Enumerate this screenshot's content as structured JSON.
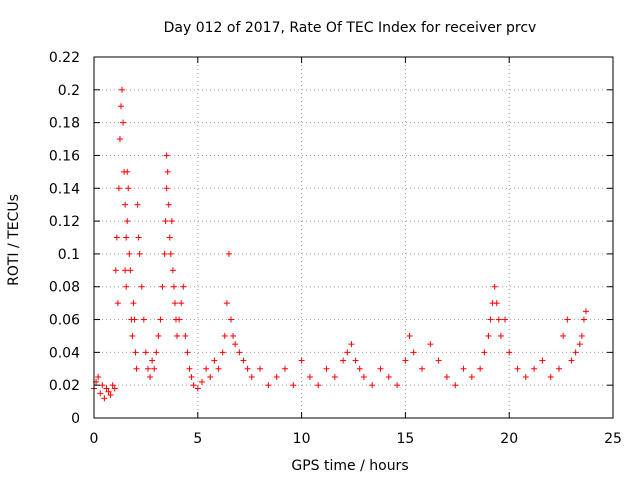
{
  "chart_data": {
    "type": "scatter",
    "title": "Day 012 of 2017, Rate Of TEC Index for receiver prcv",
    "xlabel": "GPS time / hours",
    "ylabel": "ROTI / TECUs",
    "xlim": [
      0,
      25
    ],
    "ylim": [
      0,
      0.22
    ],
    "x_ticks": [
      "0",
      "5",
      "10",
      "15",
      "20",
      "25"
    ],
    "y_ticks": [
      "0",
      "0.02",
      "0.04",
      "0.06",
      "0.08",
      "0.1",
      "0.12",
      "0.14",
      "0.16",
      "0.18",
      "0.2",
      "0.22"
    ],
    "grid": true,
    "marker": "plus",
    "color": "#ff0000",
    "series": [
      {
        "x": [
          0.0,
          0.1,
          0.2,
          0.3,
          0.4,
          0.5,
          0.6,
          0.7,
          0.8,
          0.9,
          1.0,
          1.05,
          1.1,
          1.15,
          1.2,
          1.25,
          1.3,
          1.35,
          1.4,
          1.45,
          1.5,
          1.5,
          1.55,
          1.55,
          1.6,
          1.6,
          1.65,
          1.7,
          1.75,
          1.8,
          1.85,
          1.9,
          1.95,
          2.0,
          2.05,
          2.1,
          2.15,
          2.2,
          2.3,
          2.4,
          2.5,
          2.6,
          2.7,
          2.8,
          2.9,
          3.0,
          3.1,
          3.2,
          3.3,
          3.4,
          3.45,
          3.5,
          3.5,
          3.55,
          3.6,
          3.65,
          3.7,
          3.75,
          3.8,
          3.85,
          3.9,
          3.95,
          4.0,
          4.1,
          4.2,
          4.3,
          4.4,
          4.5,
          4.6,
          4.7,
          4.8,
          5.0,
          5.2,
          5.4,
          5.6,
          5.8,
          6.0,
          6.2,
          6.3,
          6.4,
          6.5,
          6.6,
          6.7,
          6.8,
          7.0,
          7.2,
          7.4,
          7.6,
          8.0,
          8.4,
          8.8,
          9.2,
          9.6,
          10.0,
          10.4,
          10.8,
          11.2,
          11.6,
          12.0,
          12.2,
          12.4,
          12.6,
          12.8,
          13.0,
          13.4,
          13.8,
          14.2,
          14.6,
          15.0,
          15.2,
          15.4,
          15.8,
          16.2,
          16.6,
          17.0,
          17.4,
          17.8,
          18.2,
          18.6,
          18.8,
          19.0,
          19.1,
          19.2,
          19.3,
          19.4,
          19.5,
          19.6,
          19.8,
          20.0,
          20.4,
          20.8,
          21.2,
          21.6,
          22.0,
          22.4,
          22.6,
          22.8,
          23.0,
          23.2,
          23.4,
          23.5,
          23.6,
          23.7
        ],
        "y": [
          0.018,
          0.022,
          0.025,
          0.015,
          0.02,
          0.012,
          0.018,
          0.016,
          0.014,
          0.02,
          0.018,
          0.09,
          0.11,
          0.07,
          0.14,
          0.17,
          0.19,
          0.2,
          0.18,
          0.15,
          0.13,
          0.09,
          0.11,
          0.08,
          0.12,
          0.15,
          0.14,
          0.1,
          0.09,
          0.06,
          0.05,
          0.07,
          0.06,
          0.04,
          0.03,
          0.13,
          0.11,
          0.1,
          0.08,
          0.06,
          0.04,
          0.03,
          0.025,
          0.035,
          0.03,
          0.04,
          0.05,
          0.06,
          0.08,
          0.1,
          0.12,
          0.14,
          0.16,
          0.15,
          0.13,
          0.11,
          0.1,
          0.12,
          0.09,
          0.08,
          0.07,
          0.06,
          0.05,
          0.06,
          0.07,
          0.08,
          0.05,
          0.04,
          0.03,
          0.025,
          0.02,
          0.018,
          0.022,
          0.03,
          0.025,
          0.035,
          0.03,
          0.04,
          0.05,
          0.07,
          0.1,
          0.06,
          0.05,
          0.045,
          0.04,
          0.035,
          0.03,
          0.025,
          0.03,
          0.02,
          0.025,
          0.03,
          0.02,
          0.035,
          0.025,
          0.02,
          0.03,
          0.025,
          0.035,
          0.04,
          0.045,
          0.035,
          0.03,
          0.025,
          0.02,
          0.03,
          0.025,
          0.02,
          0.035,
          0.05,
          0.04,
          0.03,
          0.045,
          0.035,
          0.025,
          0.02,
          0.03,
          0.025,
          0.03,
          0.04,
          0.05,
          0.06,
          0.07,
          0.08,
          0.07,
          0.06,
          0.05,
          0.06,
          0.04,
          0.03,
          0.025,
          0.03,
          0.035,
          0.025,
          0.03,
          0.05,
          0.06,
          0.035,
          0.04,
          0.045,
          0.05,
          0.06,
          0.065
        ]
      }
    ]
  }
}
